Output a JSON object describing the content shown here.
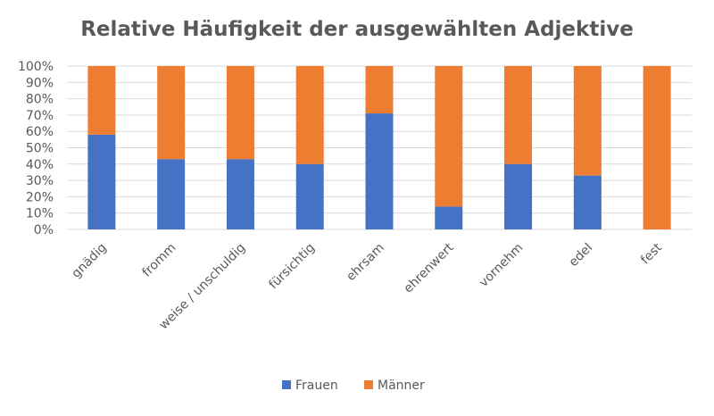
{
  "chart_data": {
    "type": "bar",
    "stacked": "percent",
    "title": "Relative Häufigkeit der ausgewählten Adjektive",
    "xlabel": "",
    "ylabel": "",
    "ylim": [
      0,
      100
    ],
    "yticks": [
      "0%",
      "10%",
      "20%",
      "30%",
      "40%",
      "50%",
      "60%",
      "70%",
      "80%",
      "90%",
      "100%"
    ],
    "grid": true,
    "legend_position": "bottom",
    "categories": [
      "gnädig",
      "fromm",
      "weise / unschuldig",
      "fürsichtig",
      "ehrsam",
      "ehrenwert",
      "vornehm",
      "edel",
      "fest"
    ],
    "series": [
      {
        "name": "Frauen",
        "color": "#4472C4",
        "values": [
          58,
          43,
          43,
          40,
          71,
          14,
          40,
          33,
          0
        ]
      },
      {
        "name": "Männer",
        "color": "#ED7D31",
        "values": [
          42,
          57,
          57,
          60,
          29,
          86,
          60,
          67,
          100
        ]
      }
    ]
  }
}
